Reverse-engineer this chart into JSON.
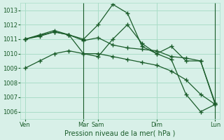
{
  "background_color": "#d8f0e8",
  "grid_color": "#aaddc8",
  "line_color": "#1a5c2a",
  "title": "Pression niveau de la mer( hPa )",
  "ylim": [
    1005.5,
    1013.5
  ],
  "yticks": [
    1006,
    1007,
    1008,
    1009,
    1010,
    1011,
    1012,
    1013
  ],
  "series": [
    {
      "x": [
        0,
        1,
        2,
        3,
        4,
        5,
        6,
        7,
        8,
        9,
        10,
        11,
        12,
        13
      ],
      "y": [
        1011.0,
        1011.2,
        1011.5,
        1011.3,
        1011.0,
        1012.0,
        1013.4,
        1012.8,
        1010.5,
        1010.0,
        1010.5,
        1009.5,
        1009.5,
        1006.5
      ]
    },
    {
      "x": [
        0,
        1,
        2,
        3,
        4,
        5,
        6,
        7,
        8,
        9,
        10,
        11,
        12,
        13
      ],
      "y": [
        1011.0,
        1011.3,
        1011.6,
        1011.3,
        1010.9,
        1011.1,
        1010.6,
        1010.4,
        1010.3,
        1010.2,
        1009.8,
        1009.7,
        1009.5,
        1006.6
      ]
    },
    {
      "x": [
        0,
        1,
        2,
        3,
        4,
        5,
        6,
        7,
        8,
        9,
        10,
        11,
        12,
        13
      ],
      "y": [
        1009.0,
        1009.5,
        1010.0,
        1010.2,
        1010.0,
        1010.0,
        1009.8,
        1009.6,
        1009.4,
        1009.2,
        1008.8,
        1008.2,
        1007.2,
        1006.5
      ]
    },
    {
      "x": [
        0,
        2,
        3,
        4,
        5,
        6,
        7,
        8,
        9,
        10,
        11,
        12,
        13
      ],
      "y": [
        1011.0,
        1011.5,
        1011.3,
        1010.0,
        1009.8,
        1011.0,
        1012.0,
        1010.7,
        1010.0,
        1009.6,
        1007.2,
        1006.0,
        1006.5
      ]
    }
  ],
  "vlines": [
    4,
    13
  ],
  "xtick_positions": [
    0,
    4,
    5,
    9,
    13
  ],
  "xtick_labels": [
    "Ven",
    "Mar",
    "Sam",
    "Dim",
    "Lun"
  ]
}
